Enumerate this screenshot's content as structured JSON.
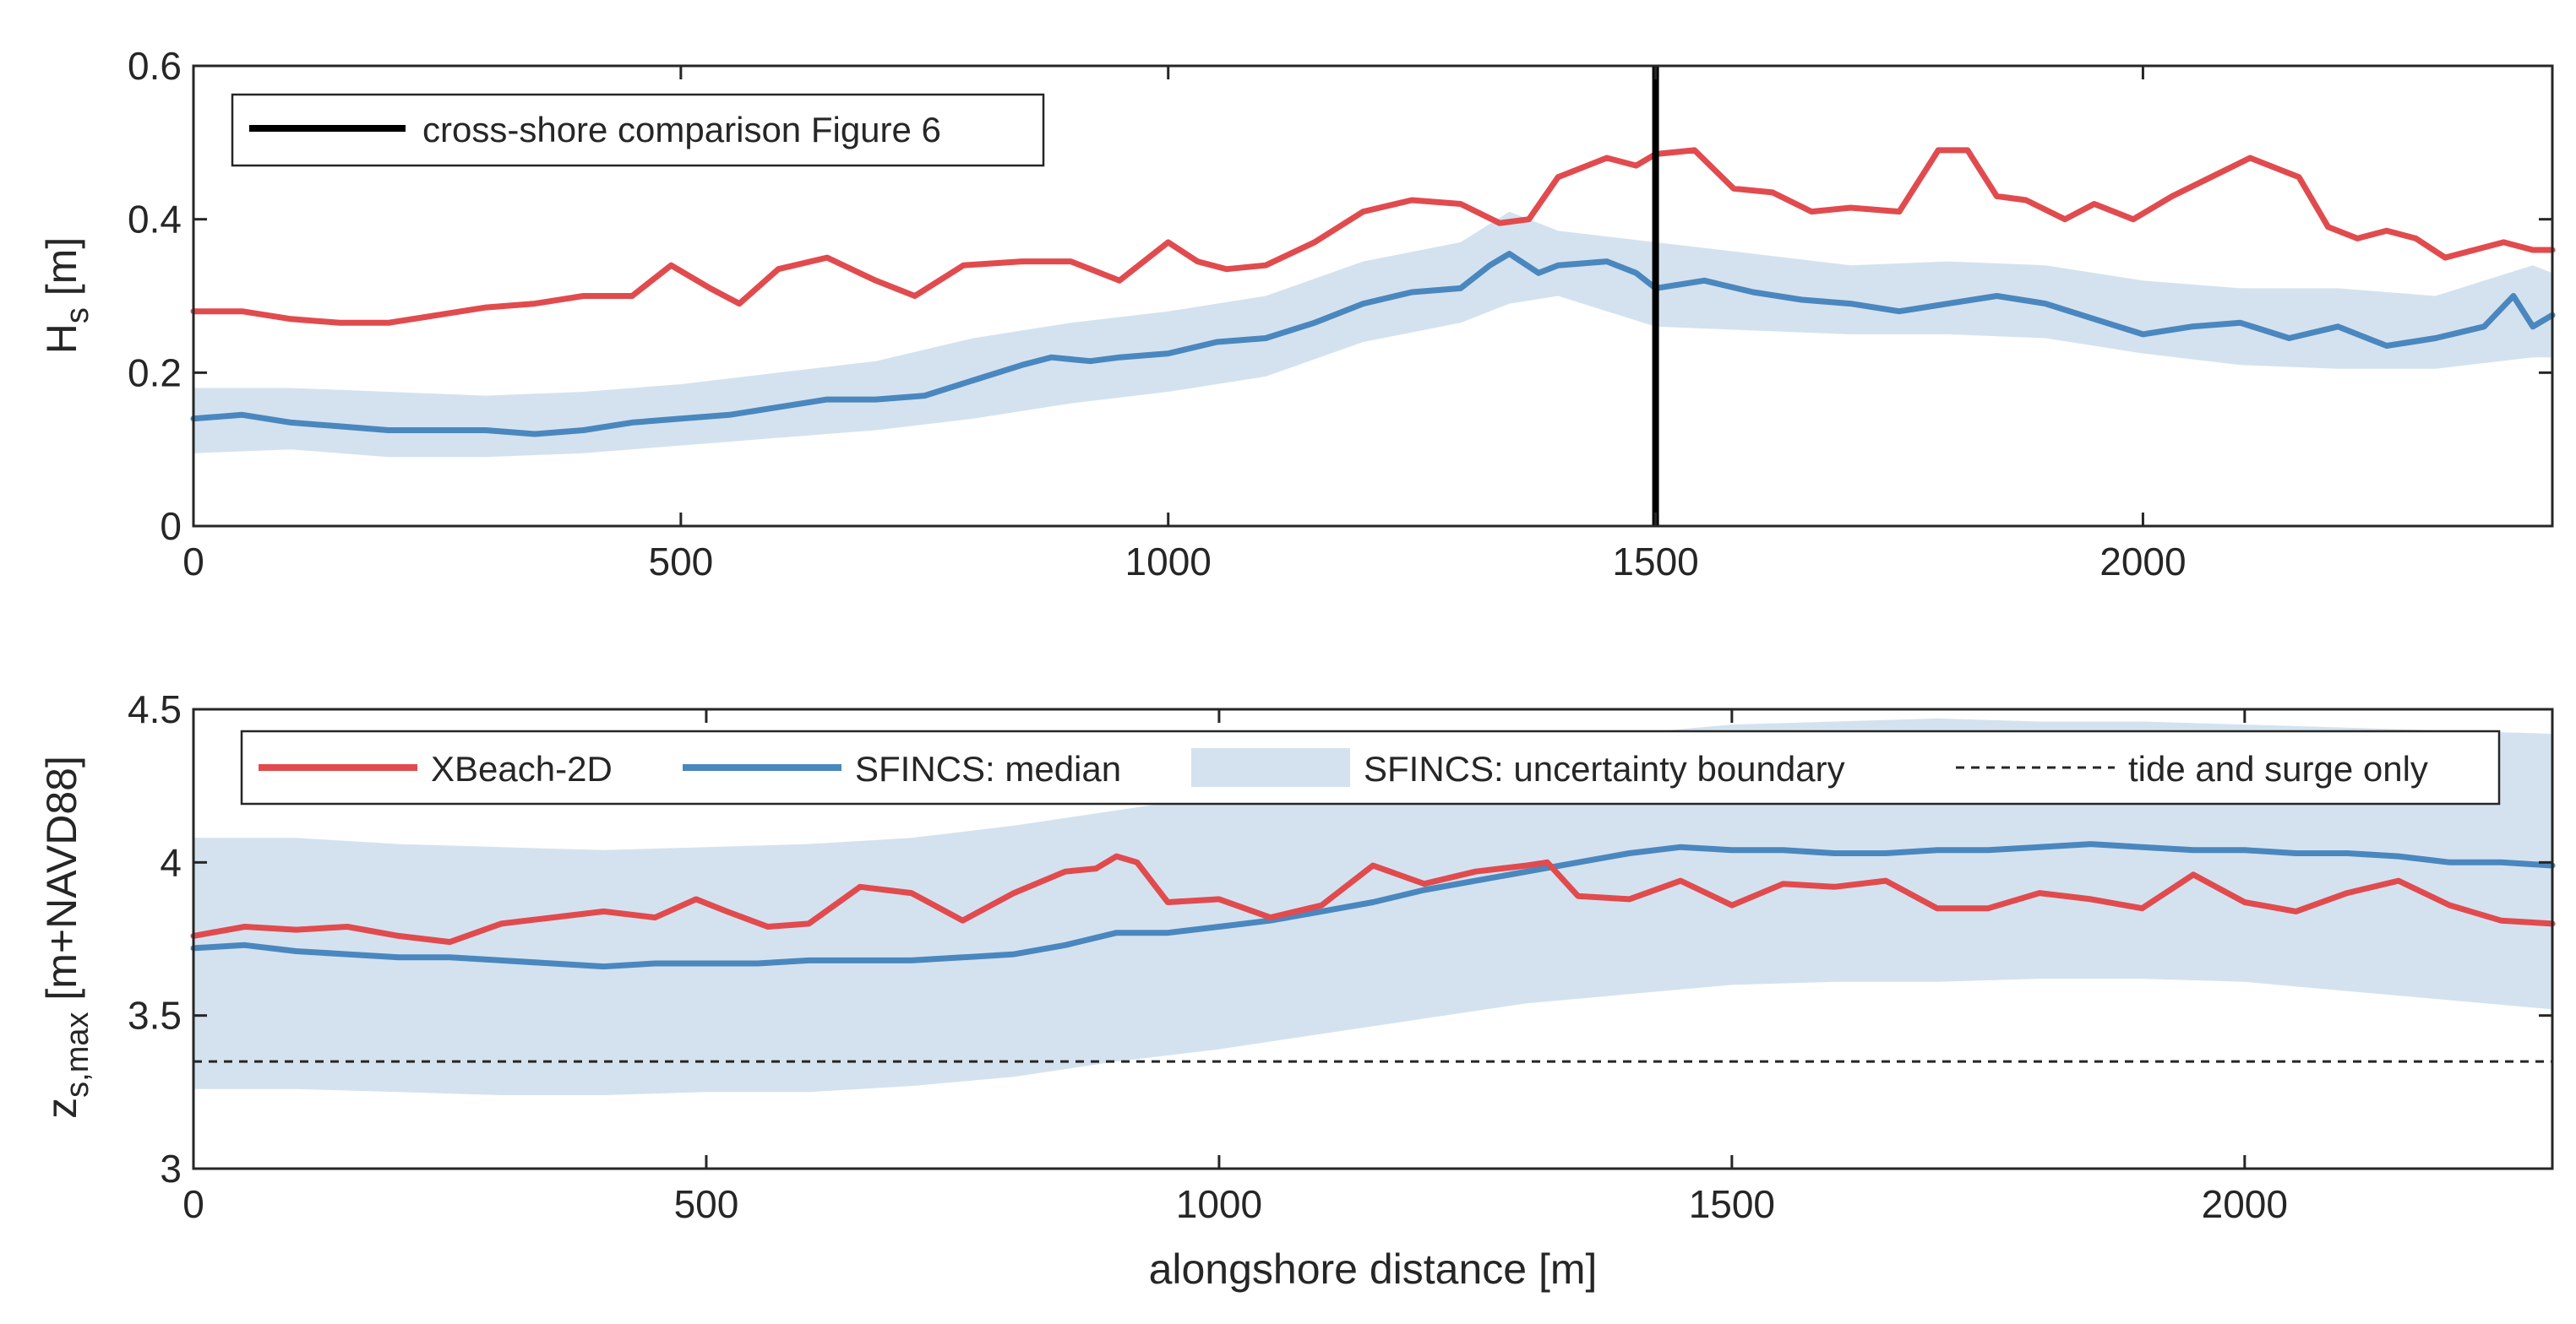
{
  "chart_data": [
    {
      "type": "line",
      "panel": "top",
      "ylabel": "H",
      "ylabel_sub": "s",
      "ylabel_unit": " [m]",
      "xlabel": "",
      "xlim": [
        0,
        2420
      ],
      "ylim": [
        0,
        0.6
      ],
      "xticks": [
        0,
        500,
        1000,
        1500,
        2000
      ],
      "xtick_labels": [
        "0",
        "500",
        "1000",
        "1500",
        "2000"
      ],
      "yticks": [
        0,
        0.2,
        0.4,
        0.6
      ],
      "ytick_labels": [
        "0",
        "0.2",
        "0.4",
        "0.6"
      ],
      "legend": {
        "position": "top-left",
        "entries": [
          "cross-shore comparison Figure 6"
        ]
      },
      "vline": {
        "x": 1500,
        "label": "cross-shore comparison Figure 6",
        "color": "#000000"
      },
      "series": [
        {
          "name": "XBeach-2D",
          "color": "#e14b4e",
          "x": [
            0,
            50,
            100,
            150,
            200,
            250,
            300,
            350,
            400,
            450,
            490,
            530,
            560,
            600,
            650,
            700,
            740,
            790,
            850,
            900,
            950,
            1000,
            1030,
            1060,
            1100,
            1150,
            1200,
            1250,
            1300,
            1340,
            1370,
            1400,
            1450,
            1480,
            1500,
            1540,
            1580,
            1620,
            1660,
            1700,
            1750,
            1790,
            1820,
            1850,
            1880,
            1920,
            1950,
            1990,
            2030,
            2070,
            2110,
            2160,
            2190,
            2220,
            2250,
            2280,
            2310,
            2340,
            2370,
            2400,
            2420
          ],
          "values": [
            0.28,
            0.28,
            0.27,
            0.265,
            0.265,
            0.275,
            0.285,
            0.29,
            0.3,
            0.3,
            0.34,
            0.31,
            0.29,
            0.335,
            0.35,
            0.32,
            0.3,
            0.34,
            0.345,
            0.345,
            0.32,
            0.37,
            0.345,
            0.335,
            0.34,
            0.37,
            0.41,
            0.425,
            0.42,
            0.395,
            0.4,
            0.455,
            0.48,
            0.47,
            0.485,
            0.49,
            0.44,
            0.435,
            0.41,
            0.415,
            0.41,
            0.49,
            0.49,
            0.43,
            0.425,
            0.4,
            0.42,
            0.4,
            0.43,
            0.455,
            0.48,
            0.455,
            0.39,
            0.375,
            0.385,
            0.375,
            0.35,
            0.36,
            0.37,
            0.36,
            0.36
          ]
        },
        {
          "name": "SFINCS: median",
          "color": "#4a87bf",
          "x": [
            0,
            50,
            100,
            150,
            200,
            250,
            300,
            350,
            400,
            450,
            500,
            550,
            600,
            650,
            700,
            750,
            800,
            850,
            880,
            920,
            950,
            1000,
            1050,
            1100,
            1150,
            1200,
            1250,
            1300,
            1330,
            1350,
            1380,
            1400,
            1450,
            1480,
            1500,
            1550,
            1600,
            1650,
            1700,
            1750,
            1800,
            1850,
            1900,
            1950,
            2000,
            2050,
            2100,
            2150,
            2200,
            2250,
            2300,
            2350,
            2380,
            2400,
            2420
          ],
          "values": [
            0.14,
            0.145,
            0.135,
            0.13,
            0.125,
            0.125,
            0.125,
            0.12,
            0.125,
            0.135,
            0.14,
            0.145,
            0.155,
            0.165,
            0.165,
            0.17,
            0.19,
            0.21,
            0.22,
            0.215,
            0.22,
            0.225,
            0.24,
            0.245,
            0.265,
            0.29,
            0.305,
            0.31,
            0.34,
            0.355,
            0.33,
            0.34,
            0.345,
            0.33,
            0.31,
            0.32,
            0.305,
            0.295,
            0.29,
            0.28,
            0.29,
            0.3,
            0.29,
            0.27,
            0.25,
            0.26,
            0.265,
            0.245,
            0.26,
            0.235,
            0.245,
            0.26,
            0.3,
            0.26,
            0.275
          ]
        }
      ],
      "band": {
        "name": "SFINCS: uncertainty boundary",
        "color": "#d4e2ef",
        "x": [
          0,
          100,
          200,
          300,
          400,
          500,
          600,
          700,
          800,
          900,
          1000,
          1100,
          1200,
          1300,
          1350,
          1400,
          1500,
          1600,
          1700,
          1800,
          1900,
          2000,
          2100,
          2200,
          2300,
          2400,
          2420
        ],
        "upper": [
          0.18,
          0.18,
          0.175,
          0.17,
          0.175,
          0.185,
          0.2,
          0.215,
          0.245,
          0.265,
          0.28,
          0.3,
          0.345,
          0.37,
          0.41,
          0.385,
          0.37,
          0.355,
          0.34,
          0.345,
          0.34,
          0.32,
          0.31,
          0.31,
          0.3,
          0.34,
          0.33
        ],
        "lower": [
          0.095,
          0.1,
          0.09,
          0.09,
          0.095,
          0.105,
          0.115,
          0.125,
          0.14,
          0.16,
          0.175,
          0.195,
          0.24,
          0.265,
          0.29,
          0.3,
          0.26,
          0.255,
          0.25,
          0.25,
          0.245,
          0.225,
          0.21,
          0.205,
          0.205,
          0.22,
          0.22
        ]
      }
    },
    {
      "type": "line",
      "panel": "bottom",
      "ylabel": "z",
      "ylabel_sub": "s,max",
      "ylabel_unit": " [m+NAVD88]",
      "xlabel": "alongshore distance [m]",
      "xlim": [
        0,
        2300
      ],
      "ylim": [
        3,
        4.5
      ],
      "xticks": [
        0,
        500,
        1000,
        1500,
        2000
      ],
      "xtick_labels": [
        "0",
        "500",
        "1000",
        "1500",
        "2000"
      ],
      "yticks": [
        3,
        3.5,
        4,
        4.5
      ],
      "ytick_labels": [
        "3",
        "3.5",
        "4",
        "4.5"
      ],
      "legend": {
        "position": "top",
        "entries": [
          "XBeach-2D",
          "SFINCS: median",
          "SFINCS: uncertainty boundary",
          "tide and surge only"
        ]
      },
      "hline": {
        "y": 3.35,
        "label": "tide and surge only",
        "color": "#262626"
      },
      "series": [
        {
          "name": "XBeach-2D",
          "color": "#e14b4e",
          "x": [
            0,
            50,
            100,
            150,
            200,
            250,
            300,
            350,
            400,
            450,
            490,
            520,
            560,
            600,
            650,
            700,
            750,
            800,
            850,
            880,
            900,
            920,
            950,
            1000,
            1050,
            1100,
            1150,
            1200,
            1250,
            1300,
            1320,
            1350,
            1400,
            1450,
            1500,
            1550,
            1600,
            1650,
            1700,
            1750,
            1800,
            1850,
            1900,
            1950,
            2000,
            2050,
            2100,
            2150,
            2200,
            2250,
            2300
          ],
          "values": [
            3.76,
            3.79,
            3.78,
            3.79,
            3.76,
            3.74,
            3.8,
            3.82,
            3.84,
            3.82,
            3.88,
            3.84,
            3.79,
            3.8,
            3.92,
            3.9,
            3.81,
            3.9,
            3.97,
            3.98,
            4.02,
            4.0,
            3.87,
            3.88,
            3.82,
            3.86,
            3.99,
            3.93,
            3.97,
            3.99,
            4.0,
            3.89,
            3.88,
            3.94,
            3.86,
            3.93,
            3.92,
            3.94,
            3.85,
            3.85,
            3.9,
            3.88,
            3.85,
            3.96,
            3.87,
            3.84,
            3.9,
            3.94,
            3.86,
            3.81,
            3.8
          ]
        },
        {
          "name": "SFINCS: median",
          "color": "#4a87bf",
          "x": [
            0,
            50,
            100,
            150,
            200,
            250,
            300,
            350,
            400,
            450,
            500,
            550,
            600,
            650,
            700,
            750,
            800,
            850,
            900,
            950,
            1000,
            1050,
            1100,
            1150,
            1200,
            1250,
            1300,
            1350,
            1400,
            1450,
            1500,
            1550,
            1600,
            1650,
            1700,
            1750,
            1800,
            1850,
            1900,
            1950,
            2000,
            2050,
            2100,
            2150,
            2200,
            2250,
            2300
          ],
          "values": [
            3.72,
            3.73,
            3.71,
            3.7,
            3.69,
            3.69,
            3.68,
            3.67,
            3.66,
            3.67,
            3.67,
            3.67,
            3.68,
            3.68,
            3.68,
            3.69,
            3.7,
            3.73,
            3.77,
            3.77,
            3.79,
            3.81,
            3.84,
            3.87,
            3.91,
            3.94,
            3.97,
            4.0,
            4.03,
            4.05,
            4.04,
            4.04,
            4.03,
            4.03,
            4.04,
            4.04,
            4.05,
            4.06,
            4.05,
            4.04,
            4.04,
            4.03,
            4.03,
            4.02,
            4.0,
            4.0,
            3.99
          ]
        }
      ],
      "band": {
        "name": "SFINCS: uncertainty boundary",
        "color": "#d4e2ef",
        "x": [
          0,
          100,
          200,
          300,
          400,
          500,
          600,
          700,
          800,
          900,
          1000,
          1100,
          1200,
          1300,
          1400,
          1500,
          1600,
          1700,
          1800,
          1900,
          2000,
          2100,
          2200,
          2300
        ],
        "upper": [
          4.08,
          4.08,
          4.06,
          4.05,
          4.04,
          4.05,
          4.06,
          4.08,
          4.12,
          4.17,
          4.22,
          4.27,
          4.31,
          4.36,
          4.42,
          4.45,
          4.46,
          4.47,
          4.46,
          4.46,
          4.45,
          4.44,
          4.43,
          4.42
        ],
        "lower": [
          3.26,
          3.26,
          3.25,
          3.24,
          3.24,
          3.25,
          3.25,
          3.27,
          3.3,
          3.35,
          3.39,
          3.44,
          3.49,
          3.54,
          3.57,
          3.6,
          3.61,
          3.61,
          3.62,
          3.62,
          3.61,
          3.58,
          3.55,
          3.52
        ]
      }
    }
  ]
}
